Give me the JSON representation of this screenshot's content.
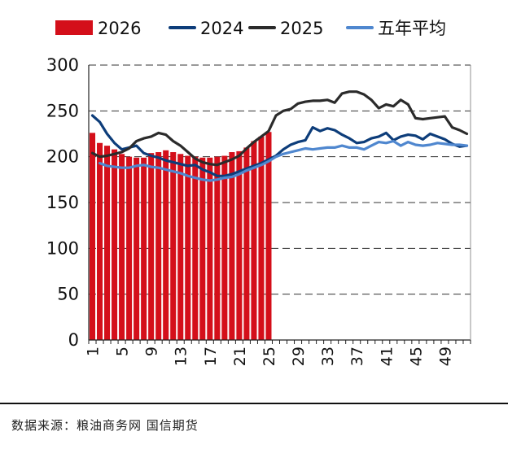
{
  "chart_data": {
    "type": "bar+line",
    "title": "",
    "xlabel": "",
    "ylabel": "",
    "ylim": [
      0,
      300
    ],
    "yticks": [
      0,
      50,
      100,
      150,
      200,
      250,
      300
    ],
    "xlim": [
      1,
      52
    ],
    "xticks": [
      1,
      5,
      9,
      13,
      17,
      21,
      25,
      29,
      33,
      37,
      41,
      45,
      49
    ],
    "grid": "horizontal dashed",
    "legend": "top",
    "series": [
      {
        "name": "2026",
        "type": "bar",
        "color": "#d40f1a",
        "x": [
          1,
          2,
          3,
          4,
          5,
          6,
          7,
          8,
          9,
          10,
          11,
          12,
          13,
          14,
          15,
          16,
          17,
          18,
          19,
          20,
          21,
          22,
          23,
          24,
          25
        ],
        "values": [
          226,
          215,
          212,
          208,
          203,
          200,
          199,
          199,
          204,
          205,
          207,
          205,
          203,
          201,
          200,
          199,
          199,
          200,
          201,
          205,
          206,
          210,
          217,
          222,
          227
        ]
      },
      {
        "name": "2024",
        "type": "line",
        "color": "#0d3d7a",
        "x": [
          1,
          2,
          3,
          4,
          5,
          6,
          7,
          8,
          9,
          10,
          11,
          12,
          13,
          14,
          15,
          16,
          17,
          18,
          19,
          20,
          21,
          22,
          23,
          24,
          25,
          26,
          27,
          28,
          29,
          30,
          31,
          32,
          33,
          34,
          35,
          36,
          37,
          38,
          39,
          40,
          41,
          42,
          43,
          44,
          45,
          46,
          47,
          48,
          49,
          50,
          51,
          52
        ],
        "values": [
          245,
          238,
          225,
          215,
          208,
          210,
          212,
          204,
          201,
          199,
          196,
          194,
          192,
          190,
          191,
          186,
          183,
          179,
          179,
          181,
          184,
          187,
          190,
          193,
          197,
          201,
          208,
          213,
          216,
          218,
          232,
          228,
          231,
          229,
          224,
          220,
          215,
          216,
          220,
          222,
          226,
          218,
          222,
          224,
          223,
          219,
          225,
          222,
          219,
          214,
          211,
          212
        ]
      },
      {
        "name": "2025",
        "type": "line",
        "color": "#2b2b2b",
        "x": [
          1,
          2,
          3,
          4,
          5,
          6,
          7,
          8,
          9,
          10,
          11,
          12,
          13,
          14,
          15,
          16,
          17,
          18,
          19,
          20,
          21,
          22,
          23,
          24,
          25,
          26,
          27,
          28,
          29,
          30,
          31,
          32,
          33,
          34,
          35,
          36,
          37,
          38,
          39,
          40,
          41,
          42,
          43,
          44,
          45,
          46,
          47,
          48,
          49,
          50,
          51,
          52
        ],
        "values": [
          204,
          200,
          201,
          203,
          205,
          209,
          217,
          220,
          222,
          226,
          224,
          217,
          212,
          205,
          198,
          194,
          192,
          191,
          194,
          197,
          201,
          209,
          216,
          222,
          228,
          245,
          250,
          252,
          258,
          260,
          261,
          261,
          262,
          259,
          269,
          271,
          271,
          268,
          262,
          253,
          257,
          255,
          262,
          257,
          242,
          241,
          242,
          243,
          244,
          232,
          229,
          225
        ]
      },
      {
        "name": "五年平均",
        "type": "line",
        "color": "#4f87cf",
        "x": [
          2,
          3,
          4,
          5,
          6,
          7,
          8,
          9,
          10,
          11,
          12,
          13,
          14,
          15,
          16,
          17,
          18,
          19,
          20,
          21,
          22,
          23,
          24,
          25,
          26,
          27,
          28,
          29,
          30,
          31,
          32,
          33,
          34,
          35,
          36,
          37,
          38,
          39,
          40,
          41,
          42,
          43,
          44,
          45,
          46,
          47,
          48,
          49,
          50,
          51,
          52
        ],
        "values": [
          193,
          190,
          189,
          188,
          188,
          190,
          191,
          189,
          188,
          186,
          184,
          182,
          179,
          177,
          175,
          174,
          175,
          177,
          178,
          181,
          185,
          188,
          191,
          195,
          200,
          203,
          205,
          207,
          209,
          208,
          209,
          210,
          210,
          212,
          210,
          210,
          208,
          212,
          216,
          215,
          217,
          212,
          216,
          213,
          212,
          213,
          215,
          214,
          213,
          213,
          212
        ]
      }
    ]
  },
  "source_text": "数据来源：粮油商务网  国信期货"
}
